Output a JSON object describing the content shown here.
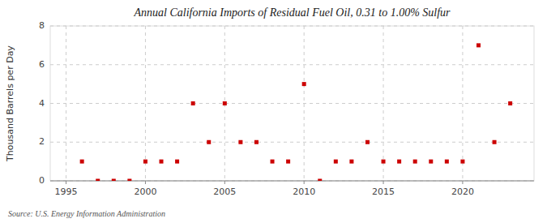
{
  "chart_data": {
    "type": "scatter",
    "title": "Annual California Imports of Residual Fuel Oil, 0.31 to 1.00% Sulfur",
    "ylabel": "Thousand Barrels per Day",
    "annotation": "Source: U.S. Energy Information Administration",
    "x": [
      1996,
      1997,
      1998,
      1999,
      2000,
      2001,
      2002,
      2003,
      2004,
      2005,
      2006,
      2007,
      2008,
      2009,
      2010,
      2011,
      2012,
      2013,
      2014,
      2015,
      2016,
      2017,
      2018,
      2019,
      2020,
      2021,
      2022,
      2023
    ],
    "values": [
      1,
      0,
      0,
      0,
      1,
      1,
      1,
      4,
      2,
      4,
      2,
      2,
      1,
      1,
      5,
      0,
      1,
      1,
      2,
      1,
      1,
      1,
      1,
      1,
      1,
      7,
      2,
      4
    ],
    "color": "#cc0000",
    "marker": "square",
    "xlim": [
      1994.0,
      2024.5
    ],
    "ylim": [
      0,
      8
    ],
    "xticks": [
      1995,
      2000,
      2005,
      2010,
      2015,
      2020
    ],
    "yticks": [
      0,
      2,
      4,
      6,
      8
    ],
    "grid": true
  }
}
